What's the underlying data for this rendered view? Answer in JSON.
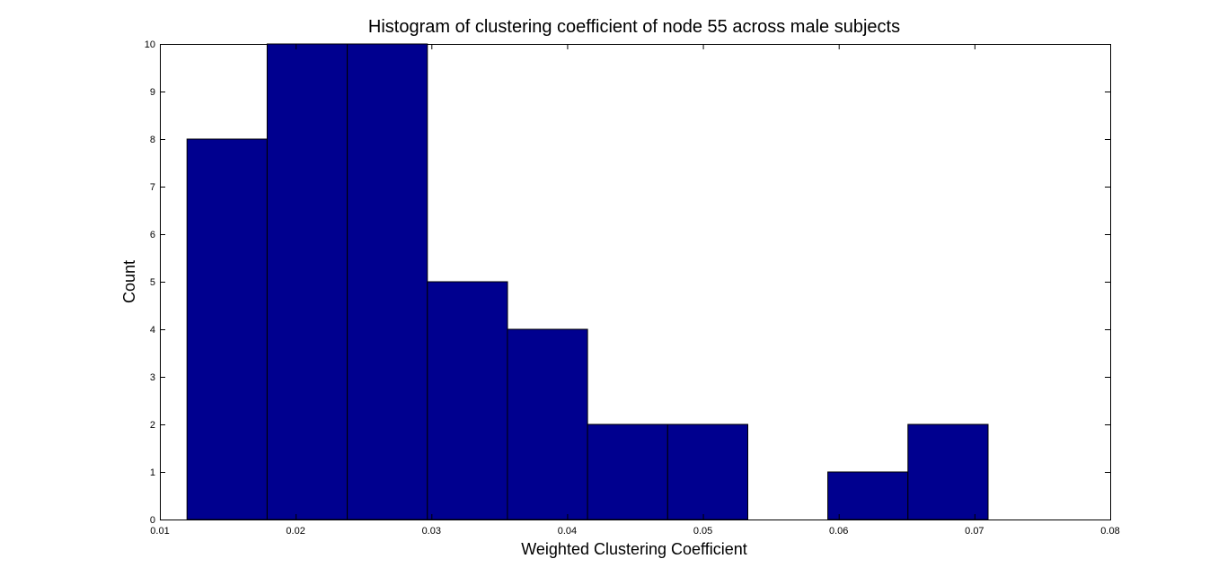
{
  "chart_data": {
    "type": "bar",
    "title": "Histogram of clustering coefficient of node 55 across male subjects",
    "xlabel": "Weighted Clustering Coefficient",
    "ylabel": "Count",
    "xlim": [
      0.01,
      0.08
    ],
    "ylim": [
      0,
      10
    ],
    "bar_color": "#00008F",
    "grid": false,
    "legend": "none",
    "bins": [
      {
        "x_start": 0.012,
        "x_end": 0.0179,
        "count": 8
      },
      {
        "x_start": 0.0179,
        "x_end": 0.0238,
        "count": 10
      },
      {
        "x_start": 0.0238,
        "x_end": 0.0297,
        "count": 10
      },
      {
        "x_start": 0.0297,
        "x_end": 0.0356,
        "count": 5
      },
      {
        "x_start": 0.0356,
        "x_end": 0.0415,
        "count": 4
      },
      {
        "x_start": 0.0415,
        "x_end": 0.0474,
        "count": 2
      },
      {
        "x_start": 0.0474,
        "x_end": 0.0533,
        "count": 2
      },
      {
        "x_start": 0.0533,
        "x_end": 0.0592,
        "count": 0
      },
      {
        "x_start": 0.0592,
        "x_end": 0.0651,
        "count": 1
      },
      {
        "x_start": 0.0651,
        "x_end": 0.071,
        "count": 2
      }
    ],
    "x_ticks": [
      {
        "value": 0.01,
        "label": "0.01"
      },
      {
        "value": 0.02,
        "label": "0.02"
      },
      {
        "value": 0.03,
        "label": "0.03"
      },
      {
        "value": 0.04,
        "label": "0.04"
      },
      {
        "value": 0.05,
        "label": "0.05"
      },
      {
        "value": 0.06,
        "label": "0.06"
      },
      {
        "value": 0.07,
        "label": "0.07"
      },
      {
        "value": 0.08,
        "label": "0.08"
      }
    ],
    "y_ticks": [
      {
        "value": 0,
        "label": "0"
      },
      {
        "value": 1,
        "label": "1"
      },
      {
        "value": 2,
        "label": "2"
      },
      {
        "value": 3,
        "label": "3"
      },
      {
        "value": 4,
        "label": "4"
      },
      {
        "value": 5,
        "label": "5"
      },
      {
        "value": 6,
        "label": "6"
      },
      {
        "value": 7,
        "label": "7"
      },
      {
        "value": 8,
        "label": "8"
      },
      {
        "value": 9,
        "label": "9"
      },
      {
        "value": 10,
        "label": "10"
      }
    ]
  }
}
